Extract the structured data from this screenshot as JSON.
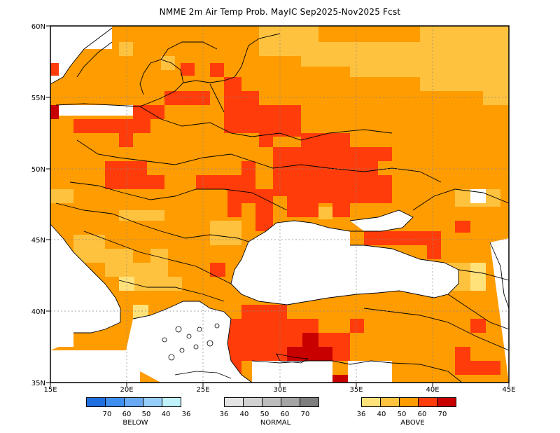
{
  "title": "NMME 2m Air Temp Prob. MayIC  Sep2025-Nov2025 Fcst",
  "map": {
    "lat_ticks": [
      "60N",
      "55N",
      "50N",
      "45N",
      "40N",
      "35N"
    ],
    "lon_ticks": [
      "15E",
      "20E",
      "25E",
      "30E",
      "35E",
      "40E",
      "45E"
    ],
    "lon_range": [
      15,
      45
    ],
    "lat_range": [
      35,
      60
    ]
  },
  "colors": {
    "below": [
      "#1e6fe0",
      "#3f8ef0",
      "#6aaaf5",
      "#96cff9",
      "#bff2fb"
    ],
    "normal": [
      "#e4e4e4",
      "#d2d2d2",
      "#bdbdbd",
      "#a4a4a4",
      "#7e7e7e"
    ],
    "above": [
      "#ffe27a",
      "#ffc23e",
      "#ff9c00",
      "#ff3c0a",
      "#c80000"
    ]
  },
  "legend": {
    "below": {
      "name": "BELOW",
      "labels": [
        "70",
        "60",
        "50",
        "40",
        "36"
      ]
    },
    "normal": {
      "name": "NORMAL",
      "labels": [
        "36",
        "40",
        "50",
        "60",
        "70"
      ]
    },
    "above": {
      "name": "ABOVE",
      "labels": [
        "36",
        "40",
        "50",
        "60",
        "70"
      ]
    }
  }
}
